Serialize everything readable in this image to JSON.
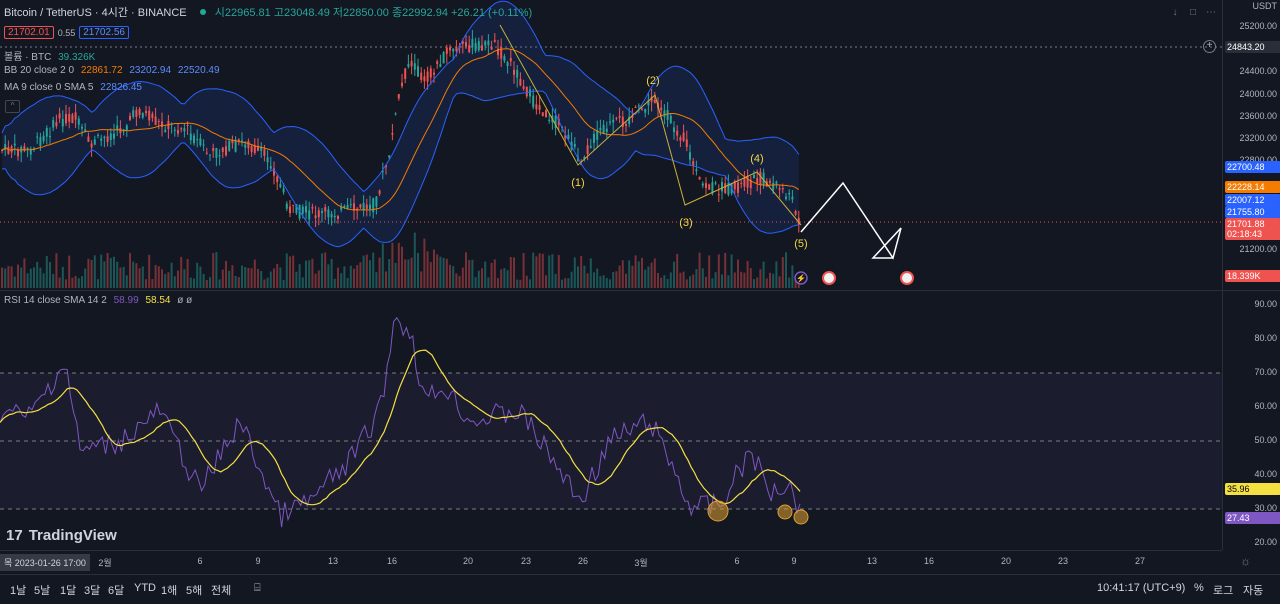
{
  "header": {
    "symbol": "Bitcoin / TetherUS · 4시간 · BINANCE",
    "ohlc": "시22965.81 고23048.49 저22850.00 종22992.94 +26.21 (+0.11%)",
    "sell_price": "21702.01",
    "spread": "0.55",
    "buy_price": "21702.56",
    "currency": "USDT"
  },
  "indicators": {
    "volume": {
      "name": "볼륨 · BTC",
      "value": "39.326K"
    },
    "bb": {
      "name": "BB 20 close 2 0",
      "basis": "22861.72",
      "upper": "23202.94",
      "lower": "22520.49"
    },
    "ma": {
      "name": "MA 9 close 0 SMA 5",
      "value": "22826.45"
    },
    "rsi": {
      "name": "RSI 14 close SMA 14 2",
      "value": "58.99",
      "sma": "58.54",
      "extra": "ø ø"
    }
  },
  "price_axis": {
    "labels": [
      "25200.00",
      "24400.00",
      "24000.00",
      "23600.00",
      "23200.00",
      "22800.00",
      "21200.00"
    ],
    "tags": [
      {
        "text": "24843.20",
        "color": "#2a2e39"
      },
      {
        "text": "22700.48",
        "color": "#2962ff"
      },
      {
        "text": "22228.14",
        "color": "#f57c00"
      },
      {
        "text": "22007.12",
        "color": "#2962ff"
      },
      {
        "text": "21755.80",
        "color": "#2962ff"
      },
      {
        "text": "21701.88",
        "color": "#ef5350"
      },
      {
        "text": "02:18:43",
        "color": "#ef5350"
      },
      {
        "text": "18.339K",
        "color": "#ef5350"
      }
    ]
  },
  "rsi_axis": {
    "labels": [
      "90.00",
      "80.00",
      "70.00",
      "60.00",
      "50.00",
      "40.00",
      "30.00",
      "20.00"
    ],
    "tags": [
      {
        "text": "35.96",
        "color": "#f5e042"
      },
      {
        "text": "27.43",
        "color": "#7e57c2"
      }
    ]
  },
  "time_axis": {
    "cursor": "목 2023-01-26  17:00",
    "ticks": [
      "2월",
      "6",
      "9",
      "13",
      "16",
      "20",
      "23",
      "26",
      "3월",
      "6",
      "9",
      "13",
      "16",
      "20",
      "23",
      "27"
    ]
  },
  "wave_labels": [
    "(1)",
    "(2)",
    "(3)",
    "(4)",
    "(5)"
  ],
  "watermark": "TradingView",
  "bottom": {
    "ranges": [
      "1날",
      "5날",
      "1달",
      "3달",
      "6달",
      "YTD",
      "1해",
      "5해",
      "전체"
    ],
    "clock": "10:41:17 (UTC+9)",
    "percent": "%",
    "log": "로그",
    "auto": "자동"
  },
  "colors": {
    "up": "#26a69a",
    "down": "#ef5350",
    "bb": "#2962ff",
    "ma": "#f57c00",
    "rsi": "#7e57c2",
    "rsi_sma": "#f5e042",
    "wave": "#c9b03a"
  }
}
